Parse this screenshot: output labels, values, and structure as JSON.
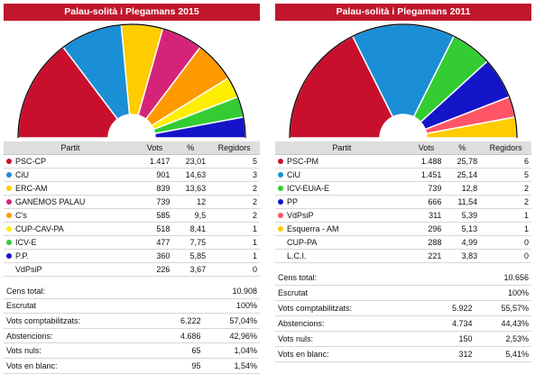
{
  "chart_data": [
    {
      "type": "parliament",
      "title": "Palau-solità i Plegamans 2015",
      "colors": [
        "#c8102e",
        "#1a8fd6",
        "#ffcc00",
        "#d6237a",
        "#ff9900",
        "#ffee00",
        "#33cc33",
        "#1414c8"
      ],
      "seats": [
        5,
        3,
        2,
        2,
        2,
        1,
        1,
        1
      ],
      "table": {
        "headers": [
          "Partit",
          "Vots",
          "%",
          "Regidors"
        ],
        "rows": [
          {
            "party": "PSC-CP",
            "votes": "1.417",
            "pct": "23,01",
            "seats": "5",
            "color": "#c8102e"
          },
          {
            "party": "CiU",
            "votes": "901",
            "pct": "14,63",
            "seats": "3",
            "color": "#1a8fd6"
          },
          {
            "party": "ERC-AM",
            "votes": "839",
            "pct": "13,63",
            "seats": "2",
            "color": "#ffcc00"
          },
          {
            "party": "GANEMOS PALAU",
            "votes": "739",
            "pct": "12",
            "seats": "2",
            "color": "#d6237a"
          },
          {
            "party": "C's",
            "votes": "585",
            "pct": "9,5",
            "seats": "2",
            "color": "#ff9900"
          },
          {
            "party": "CUP-CAV-PA",
            "votes": "518",
            "pct": "8,41",
            "seats": "1",
            "color": "#ffee00"
          },
          {
            "party": "ICV-E",
            "votes": "477",
            "pct": "7,75",
            "seats": "1",
            "color": "#33cc33"
          },
          {
            "party": "P.P.",
            "votes": "360",
            "pct": "5,85",
            "seats": "1",
            "color": "#1414c8"
          },
          {
            "party": "VdPsiP",
            "votes": "226",
            "pct": "3,67",
            "seats": "0",
            "color": ""
          }
        ]
      },
      "stats": [
        {
          "label": "Cens total:",
          "value": "",
          "pct": "10.908"
        },
        {
          "label": "Escrutat",
          "value": "",
          "pct": "100%"
        },
        {
          "label": "Vots comptabilitzats:",
          "value": "6.222",
          "pct": "57,04%"
        },
        {
          "label": "Abstencions:",
          "value": "4.686",
          "pct": "42,96%"
        },
        {
          "label": "Vots nuls:",
          "value": "65",
          "pct": "1,04%"
        },
        {
          "label": "Vots en blanc:",
          "value": "95",
          "pct": "1,54%"
        }
      ]
    },
    {
      "type": "parliament",
      "title": "Palau-solità i Plegamans 2011",
      "colors": [
        "#c8102e",
        "#1a8fd6",
        "#33cc33",
        "#1414c8",
        "#ff5566",
        "#ffcc00"
      ],
      "seats": [
        6,
        5,
        2,
        2,
        1,
        1
      ],
      "table": {
        "headers": [
          "Partit",
          "Vots",
          "%",
          "Regidors"
        ],
        "rows": [
          {
            "party": "PSC-PM",
            "votes": "1.488",
            "pct": "25,78",
            "seats": "6",
            "color": "#c8102e"
          },
          {
            "party": "CiU",
            "votes": "1.451",
            "pct": "25,14",
            "seats": "5",
            "color": "#1a8fd6"
          },
          {
            "party": "ICV-EUiA-E",
            "votes": "739",
            "pct": "12,8",
            "seats": "2",
            "color": "#33cc33"
          },
          {
            "party": "PP",
            "votes": "666",
            "pct": "11,54",
            "seats": "2",
            "color": "#1414c8"
          },
          {
            "party": "VdPsiP",
            "votes": "311",
            "pct": "5,39",
            "seats": "1",
            "color": "#ff5566"
          },
          {
            "party": "Esquerra - AM",
            "votes": "296",
            "pct": "5,13",
            "seats": "1",
            "color": "#ffcc00"
          },
          {
            "party": "CUP-PA",
            "votes": "288",
            "pct": "4,99",
            "seats": "0",
            "color": ""
          },
          {
            "party": "L.C.I.",
            "votes": "221",
            "pct": "3,83",
            "seats": "0",
            "color": ""
          }
        ]
      },
      "stats": [
        {
          "label": "Cens total:",
          "value": "",
          "pct": "10.656"
        },
        {
          "label": "Escrutat",
          "value": "",
          "pct": "100%"
        },
        {
          "label": "Vots comptabilitzats:",
          "value": "5.922",
          "pct": "55,57%"
        },
        {
          "label": "Abstencions:",
          "value": "4.734",
          "pct": "44,43%"
        },
        {
          "label": "Vots nuls:",
          "value": "150",
          "pct": "2,53%"
        },
        {
          "label": "Vots en blanc:",
          "value": "312",
          "pct": "5,41%"
        }
      ]
    }
  ]
}
